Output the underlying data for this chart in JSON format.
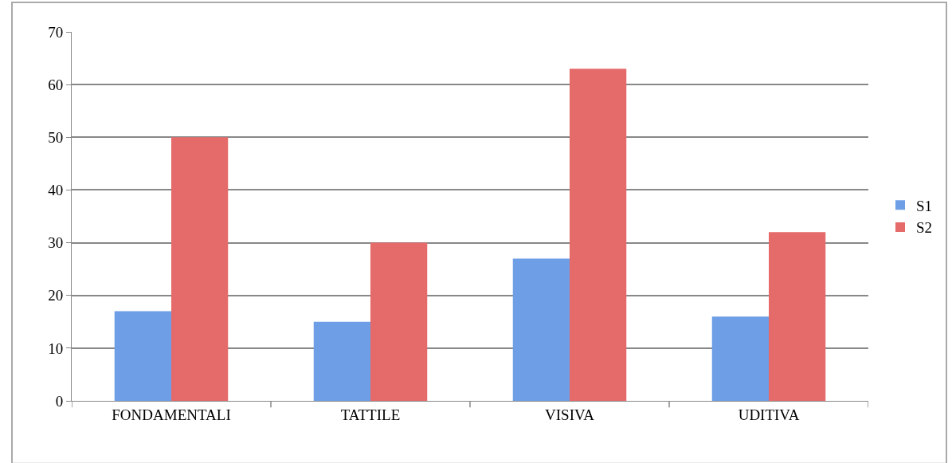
{
  "chart_data": {
    "type": "bar",
    "categories": [
      "FONDAMENTALI",
      "TATTILE",
      "VISIVA",
      "UDITIVA"
    ],
    "series": [
      {
        "name": "S1",
        "color": "#6d9ee6",
        "values": [
          17,
          15,
          27,
          16
        ]
      },
      {
        "name": "S2",
        "color": "#e56a6a",
        "values": [
          50,
          30,
          63,
          32
        ]
      }
    ],
    "ylim": [
      0,
      70
    ],
    "yticks": [
      0,
      10,
      20,
      30,
      40,
      50,
      60,
      70
    ],
    "grid": "y",
    "legend": "right"
  }
}
